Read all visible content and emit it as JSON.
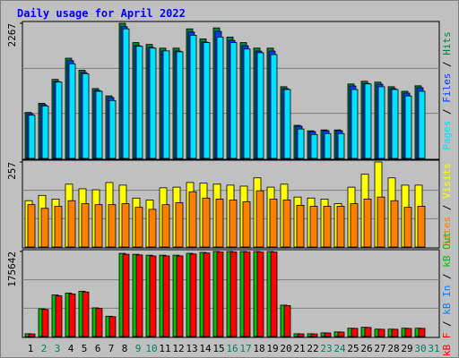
{
  "chart_data": [
    {
      "type": "bar",
      "title": "Daily usage for April 2022",
      "legend_separator": " / ",
      "ylim": [
        0,
        2267
      ],
      "yticks": [
        2267
      ],
      "series": [
        {
          "name": "Pages",
          "color": "#00e0ff",
          "values": [
            725,
            879,
            1280,
            1588,
            1419,
            1126,
            971,
            2174,
            1881,
            1850,
            1804,
            1789,
            2066,
            1943,
            2036,
            1943,
            1835,
            1773,
            1742,
            1156,
            493,
            401,
            416,
            416,
            1156,
            1249,
            1202,
            1156,
            1048,
            1126,
            0
          ]
        },
        {
          "name": "Files",
          "color": "#0040ff",
          "values": [
            750,
            900,
            1290,
            1640,
            1440,
            1140,
            1020,
            2210,
            1890,
            1860,
            1800,
            1800,
            2120,
            1950,
            2130,
            1980,
            1890,
            1800,
            1800,
            1170,
            540,
            450,
            465,
            465,
            1215,
            1260,
            1245,
            1170,
            1095,
            1185,
            0
          ]
        },
        {
          "name": "Hits",
          "color": "#008040",
          "values": [
            771,
            925,
            1326,
            1681,
            1480,
            1172,
            1049,
            2267,
            1943,
            1912,
            1850,
            1850,
            2174,
            2005,
            2190,
            2036,
            1943,
            1850,
            1850,
            1203,
            555,
            463,
            478,
            478,
            1249,
            1295,
            1280,
            1203,
            1126,
            1218,
            0
          ]
        }
      ]
    },
    {
      "type": "bar",
      "legend_separator": " / ",
      "ylim": [
        0,
        257
      ],
      "yticks": [
        257
      ],
      "series": [
        {
          "name": "Sites",
          "color": "#ff8000",
          "values": [
            128,
            117,
            123,
            140,
            131,
            128,
            128,
            131,
            120,
            114,
            128,
            134,
            167,
            148,
            145,
            142,
            137,
            170,
            145,
            142,
            126,
            123,
            123,
            123,
            131,
            145,
            151,
            140,
            120,
            123,
            0
          ]
        },
        {
          "name": "Visits",
          "color": "#ffff00",
          "values": [
            140,
            156,
            145,
            190,
            176,
            173,
            195,
            187,
            148,
            142,
            179,
            181,
            195,
            193,
            190,
            187,
            184,
            209,
            181,
            190,
            151,
            148,
            145,
            131,
            181,
            220,
            257,
            209,
            187,
            187,
            0
          ]
        }
      ]
    },
    {
      "type": "bar",
      "legend_separator": " / ",
      "ylim": [
        0,
        175642
      ],
      "yticks": [
        175642
      ],
      "categories": [
        "1",
        "2",
        "3",
        "4",
        "5",
        "6",
        "7",
        "8",
        "9",
        "10",
        "11",
        "12",
        "13",
        "14",
        "15",
        "16",
        "17",
        "18",
        "19",
        "20",
        "21",
        "22",
        "23",
        "24",
        "25",
        "26",
        "27",
        "28",
        "29",
        "30",
        "31"
      ],
      "label_colors": [
        "#000000",
        "#00805c",
        "#00805c",
        "#000000",
        "#000000",
        "#000000",
        "#000000",
        "#000000",
        "#00805c",
        "#00805c",
        "#000000",
        "#000000",
        "#000000",
        "#000000",
        "#000000",
        "#00805c",
        "#00805c",
        "#000000",
        "#000000",
        "#000000",
        "#000000",
        "#000000",
        "#00805c",
        "#00805c",
        "#000000",
        "#000000",
        "#000000",
        "#000000",
        "#000000",
        "#00805c",
        "#00805c"
      ],
      "series": [
        {
          "name": "kB F",
          "color": "#ff0000",
          "values": [
            5400,
            56000,
            84000,
            88000,
            92000,
            58000,
            41000,
            170000,
            168500,
            166500,
            166500,
            166500,
            170500,
            172500,
            174500,
            174500,
            174500,
            174500,
            174500,
            64000,
            5400,
            5400,
            7300,
            9200,
            16800,
            18700,
            14900,
            14900,
            16800,
            16800,
            0
          ]
        },
        {
          "name": "kB In",
          "color": "#0080ff",
          "values": [
            0,
            0,
            0,
            0,
            0,
            0,
            0,
            0,
            0,
            0,
            0,
            0,
            0,
            0,
            0,
            0,
            0,
            0,
            0,
            0,
            0,
            0,
            0,
            0,
            0,
            0,
            0,
            0,
            0,
            0,
            0
          ]
        },
        {
          "name": "kB Out",
          "color": "#00c000",
          "values": [
            5727,
            57270,
            85905,
            89723,
            93541,
            59179,
            41998,
            171810,
            169901,
            167992,
            167992,
            167992,
            171810,
            173719,
            175642,
            175642,
            175642,
            175642,
            175642,
            64906,
            5727,
            5727,
            7636,
            9545,
            17181,
            19090,
            15272,
            15272,
            17181,
            17181,
            0
          ]
        }
      ]
    }
  ]
}
